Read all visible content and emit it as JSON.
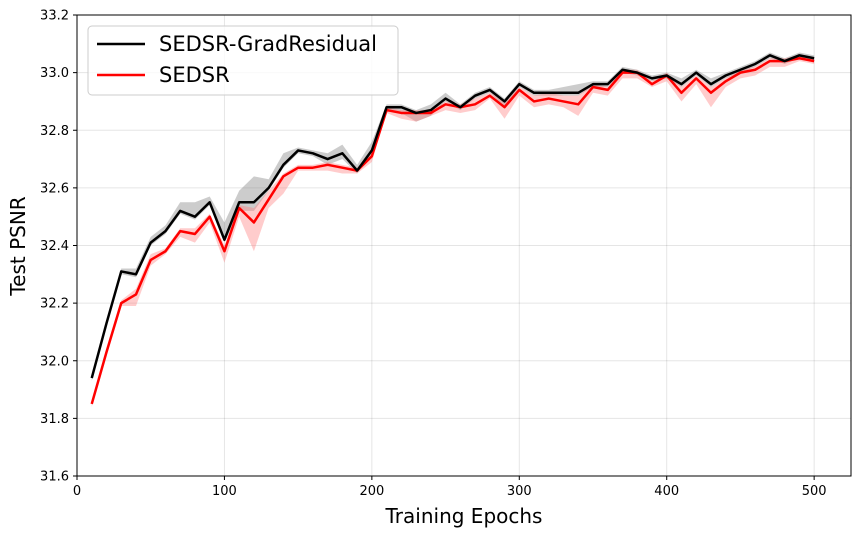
{
  "chart_data": {
    "type": "line",
    "xlabel": "Training Epochs",
    "ylabel": "Test PSNR",
    "xlim": [
      0,
      525
    ],
    "ylim": [
      31.6,
      33.2
    ],
    "xticks": [
      0,
      100,
      200,
      300,
      400,
      500
    ],
    "yticks": [
      31.6,
      31.8,
      32.0,
      32.2,
      32.4,
      32.6,
      32.8,
      33.0,
      33.2
    ],
    "grid": true,
    "legend_position": "top-left",
    "x": [
      10,
      20,
      30,
      40,
      50,
      60,
      70,
      80,
      90,
      100,
      110,
      120,
      130,
      140,
      150,
      160,
      170,
      180,
      190,
      200,
      210,
      220,
      230,
      240,
      250,
      260,
      270,
      280,
      290,
      300,
      310,
      320,
      330,
      340,
      350,
      360,
      370,
      380,
      390,
      400,
      410,
      420,
      430,
      440,
      450,
      460,
      470,
      480,
      490,
      500
    ],
    "series": [
      {
        "name": "SEDSR-GradResidual",
        "color": "#000000",
        "band_color": "#808080",
        "values": [
          31.94,
          32.13,
          32.31,
          32.3,
          32.41,
          32.45,
          32.52,
          32.5,
          32.55,
          32.42,
          32.55,
          32.55,
          32.6,
          32.68,
          32.73,
          32.72,
          32.7,
          32.72,
          32.66,
          32.73,
          32.88,
          32.88,
          32.86,
          32.87,
          32.91,
          32.88,
          32.92,
          32.94,
          32.9,
          32.96,
          32.93,
          32.93,
          32.93,
          32.93,
          32.96,
          32.96,
          33.01,
          33.0,
          32.98,
          32.99,
          32.96,
          33.0,
          32.96,
          32.99,
          33.01,
          33.03,
          33.06,
          33.04,
          33.06,
          33.05
        ],
        "lower": [
          31.93,
          32.12,
          32.3,
          32.29,
          32.4,
          32.44,
          32.51,
          32.49,
          32.54,
          32.41,
          32.52,
          32.52,
          32.59,
          32.67,
          32.72,
          32.71,
          32.68,
          32.7,
          32.65,
          32.72,
          32.87,
          32.86,
          32.83,
          32.85,
          32.9,
          32.87,
          32.91,
          32.93,
          32.88,
          32.95,
          32.92,
          32.92,
          32.92,
          32.92,
          32.95,
          32.95,
          33.0,
          32.99,
          32.97,
          32.98,
          32.95,
          32.99,
          32.95,
          32.98,
          33.0,
          33.02,
          33.05,
          33.03,
          33.05,
          33.04
        ],
        "upper": [
          31.95,
          32.14,
          32.32,
          32.32,
          32.43,
          32.47,
          32.55,
          32.55,
          32.57,
          32.48,
          32.59,
          32.64,
          32.63,
          32.72,
          32.74,
          32.73,
          32.72,
          32.75,
          32.68,
          32.76,
          32.89,
          32.89,
          32.87,
          32.89,
          32.93,
          32.89,
          32.93,
          32.95,
          32.91,
          32.97,
          32.94,
          32.94,
          32.95,
          32.96,
          32.97,
          32.97,
          33.02,
          33.01,
          32.99,
          33.0,
          32.98,
          33.01,
          32.98,
          33.0,
          33.02,
          33.04,
          33.07,
          33.05,
          33.07,
          33.06
        ]
      },
      {
        "name": "SEDSR",
        "color": "#ff0000",
        "band_color": "#ff7f7f",
        "values": [
          31.85,
          32.03,
          32.2,
          32.23,
          32.35,
          32.38,
          32.45,
          32.44,
          32.5,
          32.38,
          32.53,
          32.48,
          32.56,
          32.64,
          32.67,
          32.67,
          32.68,
          32.67,
          32.66,
          32.71,
          32.87,
          32.86,
          32.86,
          32.86,
          32.89,
          32.88,
          32.89,
          32.92,
          32.88,
          32.94,
          32.9,
          32.91,
          32.9,
          32.89,
          32.95,
          32.94,
          33.0,
          33.0,
          32.96,
          32.99,
          32.93,
          32.98,
          32.93,
          32.97,
          33.0,
          33.01,
          33.04,
          33.04,
          33.05,
          33.04
        ],
        "lower": [
          31.84,
          32.02,
          32.19,
          32.19,
          32.33,
          32.37,
          32.43,
          32.41,
          32.48,
          32.34,
          32.5,
          32.38,
          32.53,
          32.58,
          32.66,
          32.66,
          32.66,
          32.65,
          32.65,
          32.69,
          32.86,
          32.84,
          32.83,
          32.85,
          32.87,
          32.86,
          32.87,
          32.91,
          32.84,
          32.92,
          32.88,
          32.89,
          32.88,
          32.85,
          32.93,
          32.92,
          32.98,
          32.98,
          32.95,
          32.97,
          32.9,
          32.96,
          32.88,
          32.95,
          32.98,
          32.99,
          33.02,
          33.02,
          33.04,
          33.03
        ],
        "upper": [
          31.86,
          32.04,
          32.21,
          32.25,
          32.37,
          32.39,
          32.46,
          32.46,
          32.51,
          32.4,
          32.54,
          32.53,
          32.59,
          32.65,
          32.68,
          32.68,
          32.69,
          32.68,
          32.67,
          32.72,
          32.88,
          32.87,
          32.87,
          32.87,
          32.9,
          32.89,
          32.91,
          32.93,
          32.9,
          32.95,
          32.92,
          32.93,
          32.92,
          32.92,
          32.96,
          32.95,
          33.01,
          33.01,
          32.97,
          33.0,
          32.95,
          32.99,
          32.95,
          32.98,
          33.01,
          33.02,
          33.05,
          33.05,
          33.06,
          33.05
        ]
      }
    ]
  }
}
